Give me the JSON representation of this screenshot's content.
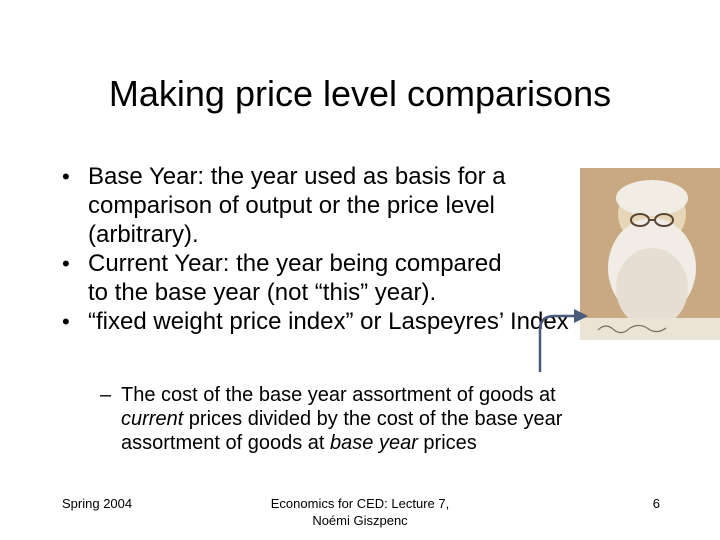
{
  "slide": {
    "title": "Making price level comparisons",
    "bullets": [
      {
        "marker": "•",
        "text_l1": "Base Year: the year used as basis for a",
        "text_l2": "comparison of output or the price level",
        "text_l3": "(arbitrary)."
      },
      {
        "marker": "•",
        "text_l1": "Current Year: the year being compared",
        "text_l2": "to the base year (not “this” year)."
      },
      {
        "marker": "•",
        "text_l1": "“fixed weight price index” or Laspeyres’ Index"
      }
    ],
    "sub_bullet": {
      "marker": "–",
      "part1": "The cost of the base year assortment of goods at",
      "part2_italic": "current",
      "part3": " prices divided by the cost of the base year",
      "part4": "assortment of goods at ",
      "part5_italic": "base year",
      "part6": " prices"
    }
  },
  "footer": {
    "left": "Spring 2004",
    "center_line1": "Economics for CED: Lecture 7,",
    "center_line2": "Noémi Giszpenc",
    "page_number": "6"
  },
  "colors": {
    "photo_background": "#c9a982",
    "arrow": "#4a5a7a"
  },
  "icons": {
    "portrait": "portrait-photo",
    "arrow": "curved-arrow-icon"
  }
}
